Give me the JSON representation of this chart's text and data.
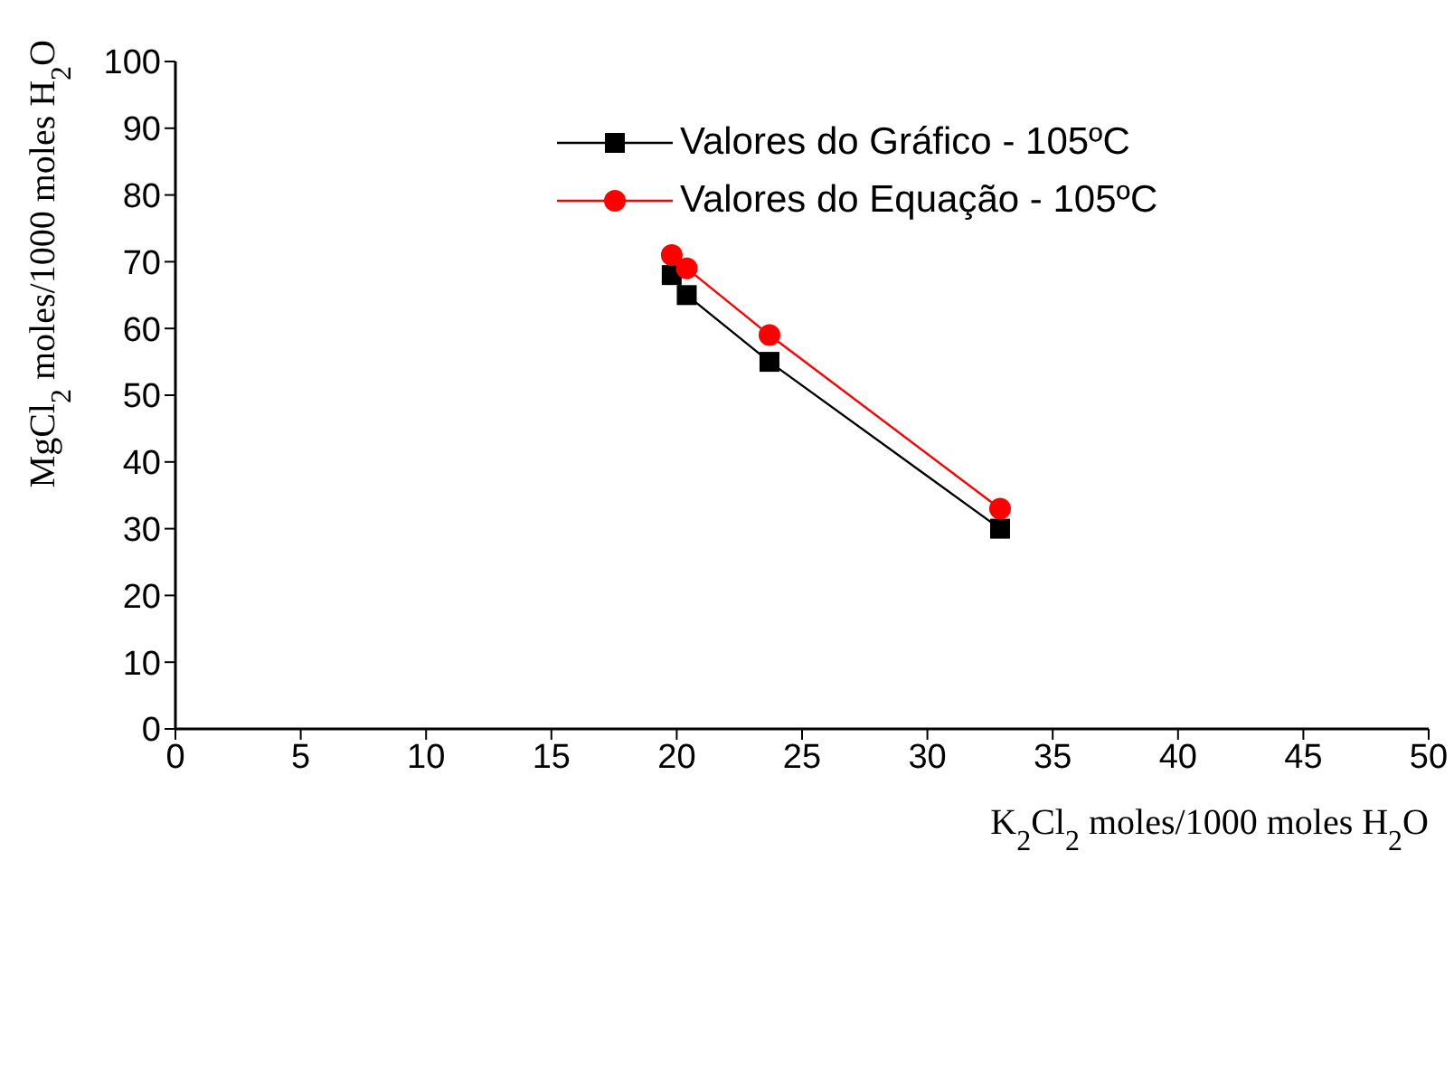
{
  "chart_data": {
    "type": "line",
    "xlabel": "K$_{2}$Cl$_{2}$ moles/1000 moles H$_{2}$O",
    "ylabel": "MgCl$_{2}$ moles/1000 moles H$_{2}$O",
    "xlim": [
      0,
      50
    ],
    "xticks": [
      0,
      5,
      10,
      15,
      20,
      25,
      30,
      35,
      40,
      45,
      50
    ],
    "ylim": [
      0,
      100
    ],
    "yticks": [
      0,
      10,
      20,
      30,
      40,
      50,
      60,
      70,
      80,
      90,
      100
    ],
    "grid": false,
    "legend": "top right",
    "line_style": "solid",
    "series": [
      {
        "name": "Valores do Gráfico - 105ºC",
        "color": "#000000",
        "marker": "square",
        "x": [
          19.8,
          20.4,
          23.7,
          32.9
        ],
        "values": [
          68,
          65,
          55,
          30
        ]
      },
      {
        "name": "Valores do Equação - 105ºC",
        "color": "#ff0000",
        "marker": "circle",
        "x": [
          19.8,
          20.4,
          23.7,
          32.9
        ],
        "values": [
          71,
          69,
          59,
          33
        ]
      }
    ]
  }
}
